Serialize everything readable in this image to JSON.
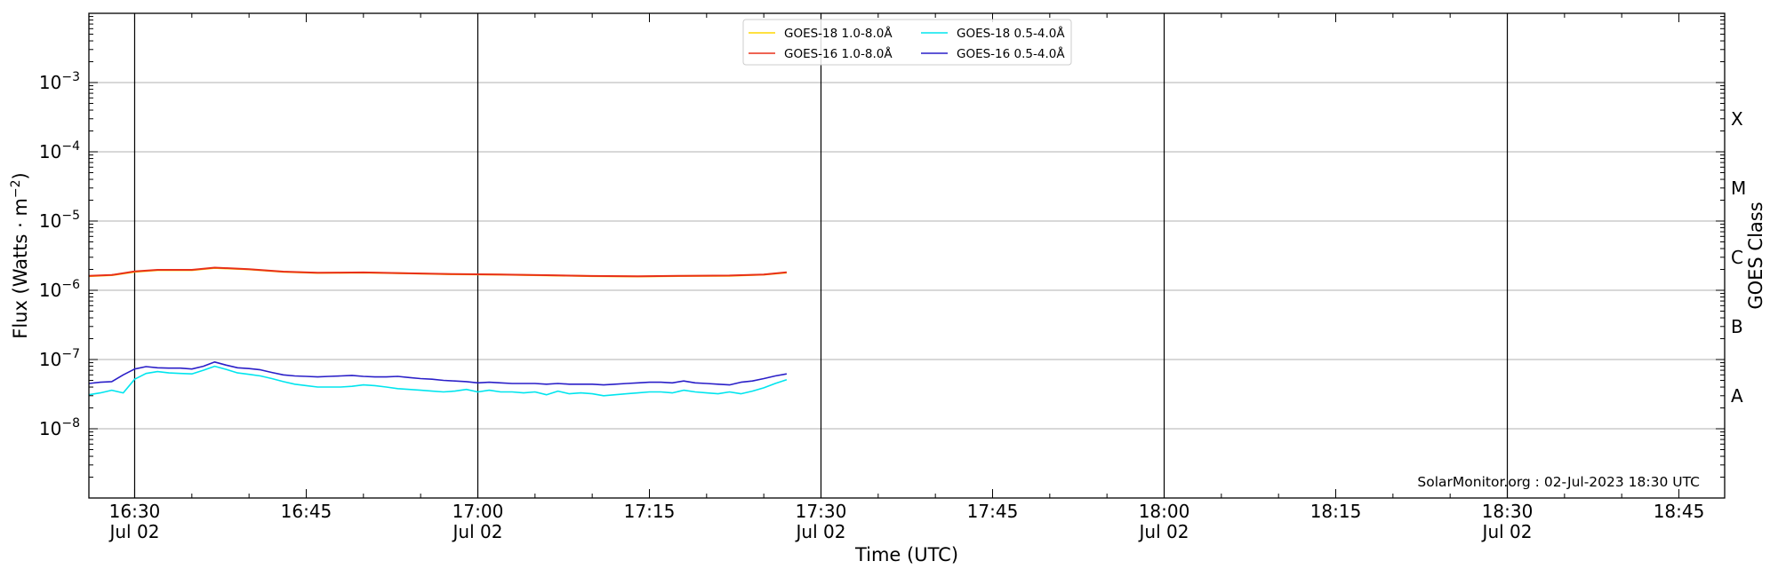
{
  "chart_data": {
    "type": "line",
    "title": "",
    "xlabel": "Time (UTC)",
    "ylabel": "Flux (Watts · m",
    "ylabel_sup": "−2",
    "ylabel_close": ")",
    "right_label": "GOES Class",
    "yscale": "log",
    "ylim": [
      1e-09,
      0.01
    ],
    "xlim": [
      "16:26",
      "18:49"
    ],
    "grid": "horizontal",
    "legend_position": "top-center",
    "y_ticks": [
      {
        "exp": -8,
        "base": "10",
        "sup": "−8"
      },
      {
        "exp": -7,
        "base": "10",
        "sup": "−7"
      },
      {
        "exp": -6,
        "base": "10",
        "sup": "−6"
      },
      {
        "exp": -5,
        "base": "10",
        "sup": "−5"
      },
      {
        "exp": -4,
        "base": "10",
        "sup": "−4"
      },
      {
        "exp": -3,
        "base": "10",
        "sup": "−3"
      }
    ],
    "x_ticks": [
      {
        "time": "16:30",
        "label": "16:30",
        "date": "Jul 02",
        "major": true
      },
      {
        "time": "16:45",
        "label": "16:45",
        "date": "",
        "major": false
      },
      {
        "time": "17:00",
        "label": "17:00",
        "date": "Jul 02",
        "major": true
      },
      {
        "time": "17:15",
        "label": "17:15",
        "date": "",
        "major": false
      },
      {
        "time": "17:30",
        "label": "17:30",
        "date": "Jul 02",
        "major": true
      },
      {
        "time": "17:45",
        "label": "17:45",
        "date": "",
        "major": false
      },
      {
        "time": "18:00",
        "label": "18:00",
        "date": "Jul 02",
        "major": true
      },
      {
        "time": "18:15",
        "label": "18:15",
        "date": "",
        "major": false
      },
      {
        "time": "18:30",
        "label": "18:30",
        "date": "Jul 02",
        "major": true
      },
      {
        "time": "18:45",
        "label": "18:45",
        "date": "",
        "major": false
      }
    ],
    "goes_classes": [
      {
        "label": "A",
        "flux": 3e-08
      },
      {
        "label": "B",
        "flux": 3e-07
      },
      {
        "label": "C",
        "flux": 3e-06
      },
      {
        "label": "M",
        "flux": 3e-05
      },
      {
        "label": "X",
        "flux": 0.0003
      }
    ],
    "watermark": "SolarMonitor.org : 02-Jul-2023 18:30 UTC",
    "series": [
      {
        "name": "GOES-18 1.0-8.0Å",
        "color": "#ffd700",
        "x": [
          "16:26",
          "16:28",
          "16:30",
          "16:32",
          "16:35",
          "16:37",
          "16:40",
          "16:43",
          "16:46",
          "16:50",
          "16:54",
          "16:58",
          "17:02",
          "17:06",
          "17:10",
          "17:14",
          "17:18",
          "17:22",
          "17:25",
          "17:27"
        ],
        "values": [
          1.6e-06,
          1.65e-06,
          1.85e-06,
          1.95e-06,
          1.95e-06,
          2.1e-06,
          2e-06,
          1.85e-06,
          1.78e-06,
          1.8e-06,
          1.75e-06,
          1.7e-06,
          1.68e-06,
          1.64e-06,
          1.6e-06,
          1.58e-06,
          1.61e-06,
          1.62e-06,
          1.68e-06,
          1.8e-06
        ]
      },
      {
        "name": "GOES-16 1.0-8.0Å",
        "color": "#e8301a",
        "x": [
          "16:26",
          "16:28",
          "16:30",
          "16:32",
          "16:35",
          "16:37",
          "16:40",
          "16:43",
          "16:46",
          "16:50",
          "16:54",
          "16:58",
          "17:02",
          "17:06",
          "17:10",
          "17:14",
          "17:18",
          "17:22",
          "17:25",
          "17:27"
        ],
        "values": [
          1.62e-06,
          1.66e-06,
          1.87e-06,
          1.97e-06,
          1.97e-06,
          2.12e-06,
          2.02e-06,
          1.86e-06,
          1.79e-06,
          1.81e-06,
          1.76e-06,
          1.71e-06,
          1.69e-06,
          1.65e-06,
          1.61e-06,
          1.59e-06,
          1.62e-06,
          1.63e-06,
          1.69e-06,
          1.82e-06
        ]
      },
      {
        "name": "GOES-18 0.5-4.0Å",
        "color": "#00e5ee",
        "x": [
          "16:26",
          "16:27",
          "16:28",
          "16:29",
          "16:30",
          "16:31",
          "16:32",
          "16:33",
          "16:34",
          "16:35",
          "16:36",
          "16:37",
          "16:38",
          "16:39",
          "16:40",
          "16:41",
          "16:42",
          "16:43",
          "16:44",
          "16:45",
          "16:46",
          "16:47",
          "16:48",
          "16:49",
          "16:50",
          "16:51",
          "16:52",
          "16:53",
          "16:54",
          "16:55",
          "16:56",
          "16:57",
          "16:58",
          "16:59",
          "17:00",
          "17:01",
          "17:02",
          "17:03",
          "17:04",
          "17:05",
          "17:06",
          "17:07",
          "17:08",
          "17:09",
          "17:10",
          "17:11",
          "17:12",
          "17:13",
          "17:14",
          "17:15",
          "17:16",
          "17:17",
          "17:18",
          "17:19",
          "17:20",
          "17:21",
          "17:22",
          "17:23",
          "17:24",
          "17:25",
          "17:26",
          "17:27"
        ],
        "values": [
          3.1e-08,
          3.3e-08,
          3.6e-08,
          3.3e-08,
          5.2e-08,
          6.3e-08,
          6.7e-08,
          6.4e-08,
          6.3e-08,
          6.2e-08,
          7e-08,
          8e-08,
          7.2e-08,
          6.4e-08,
          6.1e-08,
          5.8e-08,
          5.3e-08,
          4.8e-08,
          4.4e-08,
          4.2e-08,
          4e-08,
          4e-08,
          4e-08,
          4.1e-08,
          4.3e-08,
          4.2e-08,
          4e-08,
          3.8e-08,
          3.7e-08,
          3.6e-08,
          3.5e-08,
          3.4e-08,
          3.5e-08,
          3.7e-08,
          3.4e-08,
          3.6e-08,
          3.4e-08,
          3.4e-08,
          3.3e-08,
          3.4e-08,
          3.1e-08,
          3.5e-08,
          3.2e-08,
          3.3e-08,
          3.2e-08,
          3e-08,
          3.1e-08,
          3.2e-08,
          3.3e-08,
          3.4e-08,
          3.4e-08,
          3.3e-08,
          3.6e-08,
          3.4e-08,
          3.3e-08,
          3.2e-08,
          3.4e-08,
          3.2e-08,
          3.5e-08,
          3.9e-08,
          4.5e-08,
          5.1e-08
        ]
      },
      {
        "name": "GOES-16 0.5-4.0Å",
        "color": "#2a1fc8",
        "x": [
          "16:26",
          "16:27",
          "16:28",
          "16:29",
          "16:30",
          "16:31",
          "16:32",
          "16:33",
          "16:34",
          "16:35",
          "16:36",
          "16:37",
          "16:38",
          "16:39",
          "16:40",
          "16:41",
          "16:42",
          "16:43",
          "16:44",
          "16:45",
          "16:46",
          "16:47",
          "16:48",
          "16:49",
          "16:50",
          "16:51",
          "16:52",
          "16:53",
          "16:54",
          "16:55",
          "16:56",
          "16:57",
          "16:58",
          "16:59",
          "17:00",
          "17:01",
          "17:02",
          "17:03",
          "17:04",
          "17:05",
          "17:06",
          "17:07",
          "17:08",
          "17:09",
          "17:10",
          "17:11",
          "17:12",
          "17:13",
          "17:14",
          "17:15",
          "17:16",
          "17:17",
          "17:18",
          "17:19",
          "17:20",
          "17:21",
          "17:22",
          "17:23",
          "17:24",
          "17:25",
          "17:26",
          "17:27"
        ],
        "values": [
          4.5e-08,
          4.7e-08,
          4.8e-08,
          6e-08,
          7.3e-08,
          7.9e-08,
          7.6e-08,
          7.5e-08,
          7.5e-08,
          7.3e-08,
          8e-08,
          9.2e-08,
          8.3e-08,
          7.6e-08,
          7.4e-08,
          7.1e-08,
          6.5e-08,
          6e-08,
          5.8e-08,
          5.7e-08,
          5.6e-08,
          5.7e-08,
          5.8e-08,
          5.9e-08,
          5.7e-08,
          5.6e-08,
          5.6e-08,
          5.7e-08,
          5.5e-08,
          5.3e-08,
          5.2e-08,
          5e-08,
          4.9e-08,
          4.8e-08,
          4.6e-08,
          4.7e-08,
          4.6e-08,
          4.5e-08,
          4.5e-08,
          4.5e-08,
          4.4e-08,
          4.5e-08,
          4.4e-08,
          4.4e-08,
          4.4e-08,
          4.3e-08,
          4.4e-08,
          4.5e-08,
          4.6e-08,
          4.7e-08,
          4.7e-08,
          4.6e-08,
          4.9e-08,
          4.6e-08,
          4.5e-08,
          4.4e-08,
          4.3e-08,
          4.7e-08,
          4.9e-08,
          5.3e-08,
          5.8e-08,
          6.2e-08
        ]
      }
    ]
  }
}
